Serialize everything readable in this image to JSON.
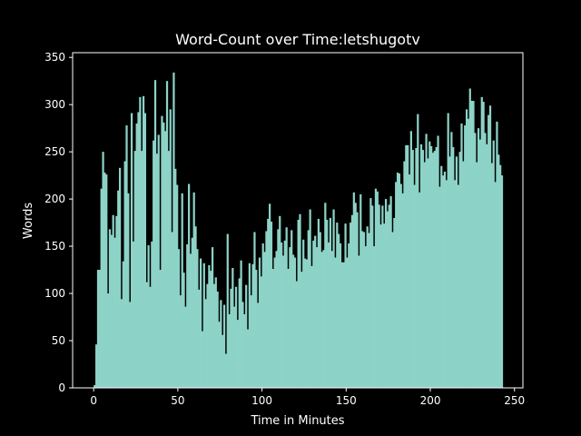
{
  "colors": {
    "background": "#000000",
    "bar": "#8dd3c7",
    "axes": "#ffffff",
    "text": "#ffffff"
  },
  "chart_data": {
    "type": "bar",
    "title": "Word-Count over Time:letshugotv",
    "xlabel": "Time in Minutes",
    "ylabel": "Words",
    "xlim": [
      -12.5,
      255
    ],
    "ylim": [
      0,
      355
    ],
    "xticks": [
      0,
      50,
      100,
      150,
      200,
      250
    ],
    "yticks": [
      0,
      50,
      100,
      150,
      200,
      250,
      300,
      350
    ],
    "grid": false,
    "legend": "none",
    "bin_width": 1.2,
    "x": [
      0,
      1,
      2,
      3,
      4,
      5,
      6,
      7,
      8,
      9,
      10,
      11,
      12,
      13,
      14,
      15,
      16,
      17,
      18,
      19,
      20,
      21,
      22,
      23,
      24,
      25,
      26,
      27,
      28,
      29,
      30,
      31,
      32,
      33,
      34,
      35,
      36,
      37,
      38,
      39,
      40,
      41,
      42,
      43,
      44,
      45,
      46,
      47,
      48,
      49,
      50,
      51,
      52,
      53,
      54,
      55,
      56,
      57,
      58,
      59,
      60,
      61,
      62,
      63,
      64,
      65,
      66,
      67,
      68,
      69,
      70,
      71,
      72,
      73,
      74,
      75,
      76,
      77,
      78,
      79,
      80,
      81,
      82,
      83,
      84,
      85,
      86,
      87,
      88,
      89,
      90,
      91,
      92,
      93,
      94,
      95,
      96,
      97,
      98,
      99,
      100,
      101,
      102,
      103,
      104,
      105,
      106,
      107,
      108,
      109,
      110,
      111,
      112,
      113,
      114,
      115,
      116,
      117,
      118,
      119,
      120,
      121,
      122,
      123,
      124,
      125,
      126,
      127,
      128,
      129,
      130,
      131,
      132,
      133,
      134,
      135,
      136,
      137,
      138,
      139,
      140,
      141,
      142,
      143,
      144,
      145,
      146,
      147,
      148,
      149,
      150,
      151,
      152,
      153,
      154,
      155,
      156,
      157,
      158,
      159,
      160,
      161,
      162,
      163,
      164,
      165,
      166,
      167,
      168,
      169,
      170,
      171,
      172,
      173,
      174,
      175,
      176,
      177,
      178,
      179,
      180,
      181,
      182,
      183,
      184,
      185,
      186,
      187,
      188,
      189,
      190,
      191,
      192,
      193,
      194,
      195,
      196,
      197,
      198,
      199,
      200,
      201,
      202,
      203,
      204,
      205,
      206,
      207,
      208,
      209,
      210,
      211,
      212,
      213,
      214,
      215,
      216,
      217,
      218,
      219,
      220,
      221,
      222,
      223,
      224,
      225,
      226,
      227,
      228,
      229,
      230,
      231,
      232,
      233,
      234,
      235,
      236,
      237,
      238,
      239,
      240,
      241,
      242
    ],
    "values": [
      3,
      46,
      125,
      125,
      211,
      250,
      228,
      226,
      100,
      168,
      162,
      183,
      159,
      182,
      209,
      233,
      94,
      134,
      240,
      278,
      206,
      91,
      291,
      155,
      251,
      280,
      292,
      308,
      251,
      309,
      291,
      112,
      151,
      107,
      155,
      262,
      326,
      248,
      268,
      125,
      288,
      281,
      272,
      325,
      251,
      295,
      165,
      334,
      232,
      215,
      147,
      98,
      206,
      122,
      86,
      152,
      216,
      142,
      159,
      207,
      171,
      147,
      104,
      137,
      60,
      132,
      94,
      110,
      130,
      124,
      149,
      110,
      117,
      102,
      70,
      93,
      56,
      88,
      36,
      163,
      78,
      105,
      127,
      86,
      107,
      72,
      116,
      135,
      91,
      78,
      109,
      62,
      132,
      98,
      131,
      165,
      125,
      90,
      138,
      118,
      153,
      144,
      166,
      179,
      195,
      176,
      126,
      138,
      145,
      168,
      182,
      154,
      140,
      156,
      170,
      126,
      149,
      167,
      141,
      138,
      113,
      178,
      184,
      123,
      157,
      137,
      136,
      167,
      189,
      129,
      156,
      161,
      149,
      179,
      165,
      144,
      146,
      196,
      178,
      154,
      180,
      145,
      189,
      138,
      175,
      163,
      153,
      133,
      133,
      174,
      138,
      153,
      175,
      183,
      207,
      196,
      186,
      140,
      205,
      166,
      165,
      150,
      171,
      164,
      201,
      193,
      150,
      211,
      208,
      194,
      173,
      193,
      174,
      200,
      187,
      194,
      203,
      165,
      180,
      218,
      228,
      227,
      216,
      206,
      240,
      257,
      257,
      226,
      272,
      252,
      215,
      254,
      290,
      207,
      258,
      252,
      239,
      269,
      243,
      261,
      256,
      249,
      251,
      255,
      267,
      213,
      235,
      225,
      229,
      220,
      291,
      245,
      271,
      255,
      220,
      245,
      215,
      250,
      280,
      240,
      278,
      295,
      285,
      317,
      304,
      304,
      270,
      239,
      275,
      263,
      308,
      303,
      270,
      258,
      289,
      299,
      238,
      262,
      218,
      282,
      247,
      236,
      225
    ]
  }
}
